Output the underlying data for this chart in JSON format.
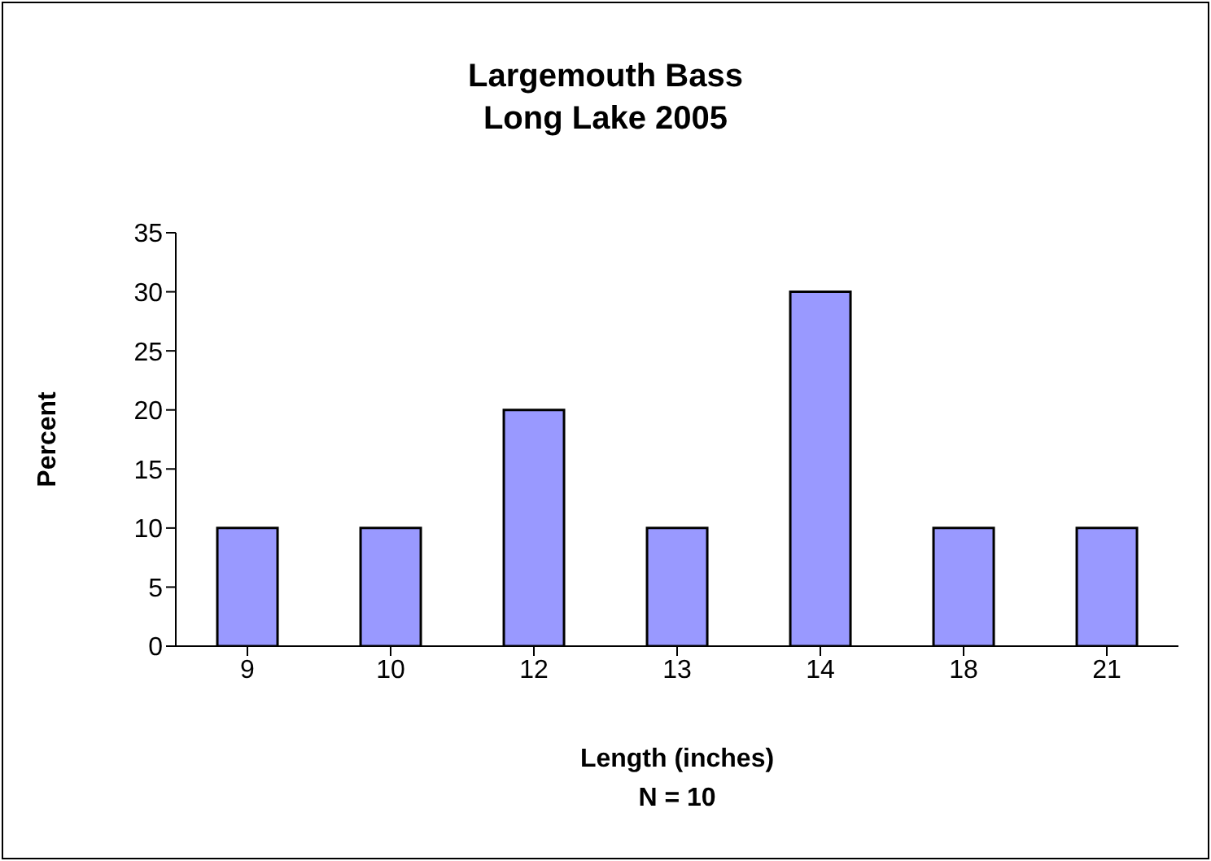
{
  "chart_data": {
    "type": "bar",
    "title": "Largemouth Bass",
    "subtitle": "Long Lake 2005",
    "xlabel": "Length (inches)",
    "ylabel": "Percent",
    "annotations": [
      "N = 10"
    ],
    "categories": [
      "9",
      "10",
      "12",
      "13",
      "14",
      "18",
      "21"
    ],
    "values": [
      10,
      10,
      20,
      10,
      30,
      10,
      10
    ],
    "color": "#9999ff",
    "ylim": [
      0,
      35
    ],
    "yticks": [
      0,
      5,
      10,
      15,
      20,
      25,
      30,
      35
    ],
    "grid": false,
    "legend": false
  }
}
